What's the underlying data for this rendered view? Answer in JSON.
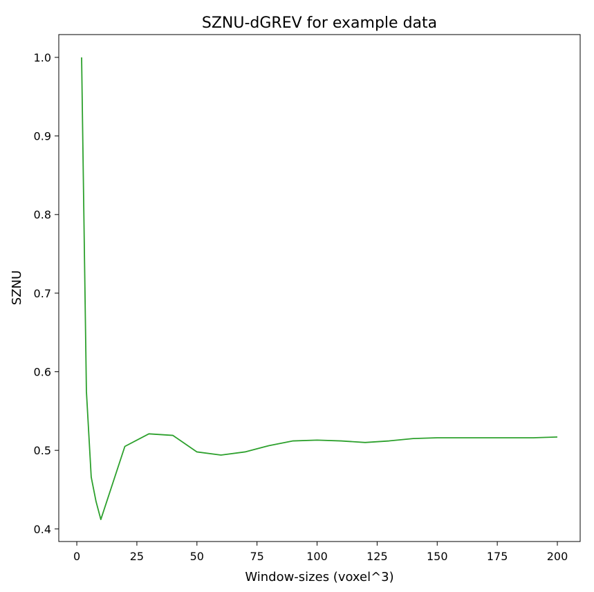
{
  "chart_data": {
    "type": "line",
    "title": "SZNU-dGREV for example data",
    "xlabel": "Window-sizes (voxel^3)",
    "ylabel": "SZNU",
    "xlim": [
      -7.5,
      209.5
    ],
    "ylim": [
      0.384,
      1.029
    ],
    "xticks": [
      0,
      25,
      50,
      75,
      100,
      125,
      150,
      175,
      200
    ],
    "xtick_labels": [
      "0",
      "25",
      "50",
      "75",
      "100",
      "125",
      "150",
      "175",
      "200"
    ],
    "yticks": [
      0.4,
      0.5,
      0.6,
      0.7,
      0.8,
      0.9,
      1.0
    ],
    "ytick_labels": [
      "0.4",
      "0.5",
      "0.6",
      "0.7",
      "0.8",
      "0.9",
      "1.0"
    ],
    "grid": false,
    "series": [
      {
        "color": "#2ca02c",
        "x": [
          2,
          4,
          6,
          8,
          10,
          20,
          30,
          40,
          50,
          60,
          70,
          80,
          90,
          100,
          110,
          120,
          130,
          140,
          150,
          160,
          170,
          180,
          190,
          200
        ],
        "y": [
          1.0,
          0.575,
          0.466,
          0.435,
          0.412,
          0.505,
          0.521,
          0.519,
          0.498,
          0.494,
          0.498,
          0.506,
          0.512,
          0.513,
          0.512,
          0.51,
          0.512,
          0.515,
          0.516,
          0.516,
          0.516,
          0.516,
          0.516,
          0.517
        ]
      }
    ]
  }
}
